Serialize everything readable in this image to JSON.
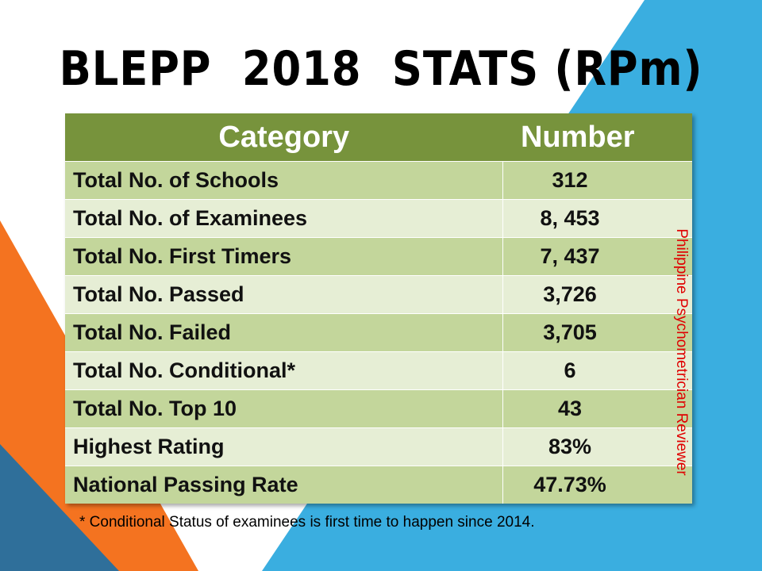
{
  "title": "BLEPP  2018  STATS (RPm)",
  "table": {
    "header": [
      "Category",
      "Number"
    ],
    "rows": [
      [
        "Total No. of Schools",
        "312"
      ],
      [
        "Total No. of Examinees",
        "8, 453"
      ],
      [
        "Total No. First Timers",
        "7, 437"
      ],
      [
        "Total No. Passed",
        "3,726"
      ],
      [
        "Total No. Failed",
        "3,705"
      ],
      [
        "Total No. Conditional*",
        "6"
      ],
      [
        "Total No. Top 10",
        "43"
      ],
      [
        "Highest Rating",
        "83%"
      ],
      [
        "National Passing Rate",
        "47.73%"
      ]
    ]
  },
  "side_text": "Philippine Psychometrician Reviewer",
  "footnote": "* Conditional  Status of examinees is first time to happen since 2014."
}
